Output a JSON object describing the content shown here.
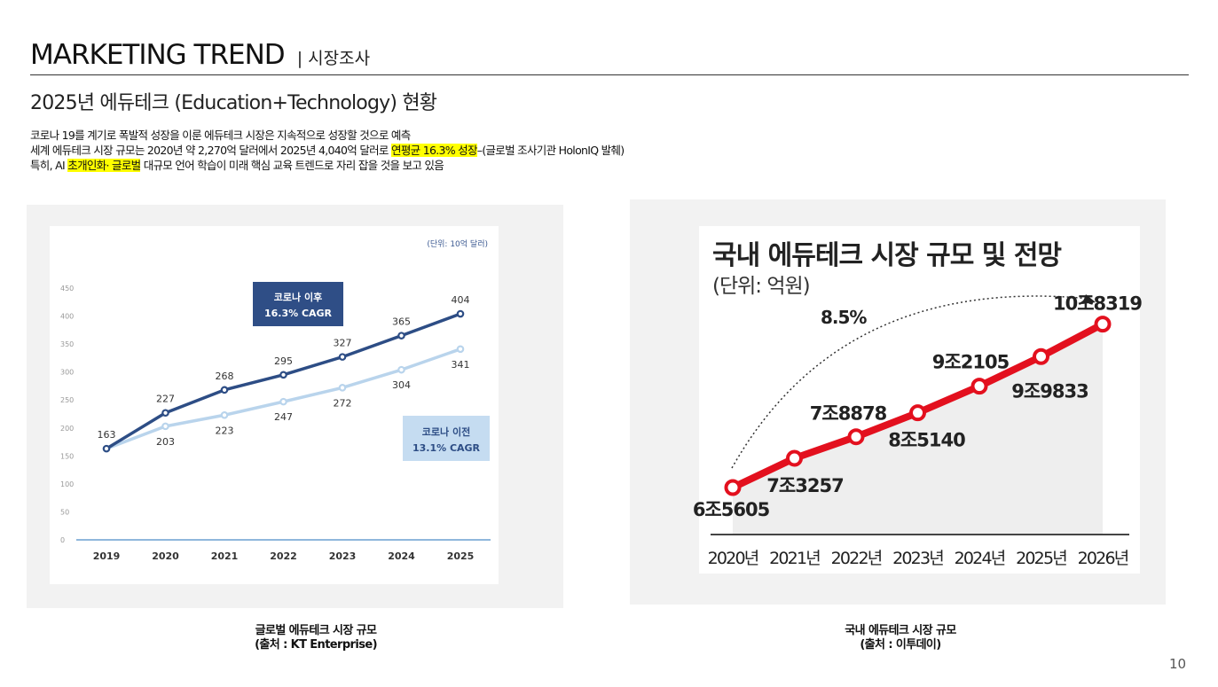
{
  "header": {
    "title": "MARKETING TREND",
    "subtitle": "| 시장조사"
  },
  "section_title": "2025년 에듀테크 (Education+Technology) 현황",
  "body": {
    "line1": "코로나 19를 계기로 폭발적 성장을 이룬 에듀테크 시장은 지속적으로 성장할 것으로 예측",
    "line2_pre": "세계 에듀테크 시장 규모는 2020년 약 2,270억 달러에서 2025년 4,040억 달러로 ",
    "line2_hl": "연평균 16.3% 성장",
    "line2_post": "–(글로벌 조사기관 HolonIQ 발췌)",
    "line3_pre": "특히, AI ",
    "line3_hl": "초개인화· 글로벌",
    "line3_post": " 대규모 언어 학습이 미래 핵심 교육 트렌드로 자리 잡을 것을 보고 있음"
  },
  "left_chart": {
    "unit_label": "(단위: 10억 달러)",
    "box_after_line1": "코로나 이후",
    "box_after_line2": "16.3% CAGR",
    "box_before_line1": "코로나 이전",
    "box_before_line2": "13.1% CAGR",
    "colors": {
      "after": "#2d4d85",
      "before": "#b9d4ec",
      "box_after": "#2f4e86",
      "box_before": "#c5dcf1",
      "baseline": "#6a9fd0"
    }
  },
  "right_chart": {
    "title": "국내 에듀테크 시장 규모 및 전망",
    "unit": "(단위: 억원)",
    "cagr_label": "8.5%",
    "colors": {
      "line": "#e3101e",
      "area": "#eeeeee"
    }
  },
  "captions": {
    "left_line1": "글로벌 에듀테크 시장 규모",
    "left_line2": "(출처 : KT Enterprise)",
    "right_line1": "국내 에듀테크 시장 규모",
    "right_line2": "(출처 : 이투데이)"
  },
  "page_number": "10",
  "chart_data": [
    {
      "type": "line",
      "title": "",
      "ylabel": "",
      "categories": [
        "2019",
        "2020",
        "2021",
        "2022",
        "2023",
        "2024",
        "2025"
      ],
      "series": [
        {
          "name": "코로나 이후 16.3% CAGR",
          "values": [
            163,
            227,
            268,
            295,
            327,
            365,
            404
          ]
        },
        {
          "name": "코로나 이전 13.1% CAGR",
          "values": [
            163,
            203,
            223,
            247,
            272,
            304,
            341
          ]
        }
      ],
      "series_label_text": [
        [
          "163",
          "227",
          "268",
          "295",
          "327",
          "365",
          "404"
        ],
        [
          "",
          "203",
          "223",
          "247",
          "272",
          "304",
          "341"
        ]
      ],
      "yticks": [
        "0",
        "50",
        "100",
        "150",
        "200",
        "250",
        "300",
        "350",
        "400",
        "450"
      ],
      "ylim": [
        0,
        450
      ]
    },
    {
      "type": "line",
      "title": "국내 에듀테크 시장 규모 및 전망",
      "unit": "억원",
      "categories": [
        "2020년",
        "2021년",
        "2022년",
        "2023년",
        "2024년",
        "2025년",
        "2026년"
      ],
      "values": [
        65605,
        73257,
        78878,
        85140,
        92105,
        99833,
        108319
      ],
      "value_labels": [
        "6조5605",
        "7조3257",
        "7조8878",
        "8조5140",
        "9조2105",
        "9조9833",
        "10조8319"
      ],
      "annotation": "8.5%"
    }
  ]
}
